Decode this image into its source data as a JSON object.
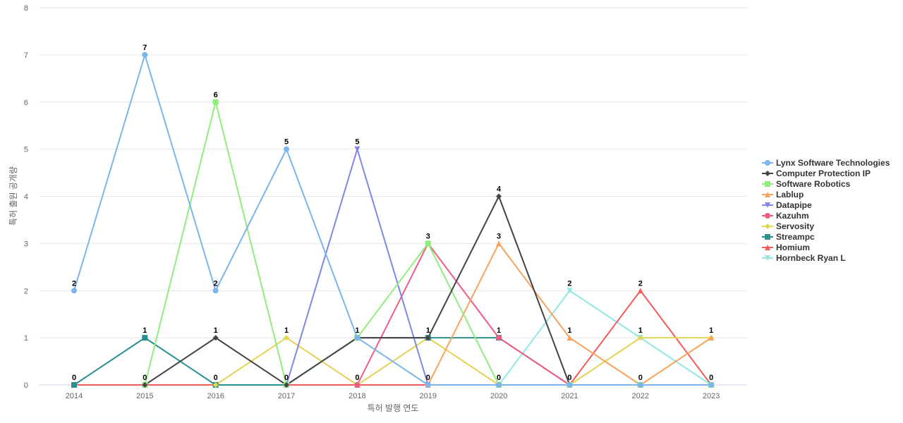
{
  "chart_data": {
    "type": "line",
    "title": "",
    "xlabel": "특허 발행 연도",
    "ylabel": "특허 출원 공개량",
    "ylim": [
      0,
      8
    ],
    "yticks": [
      0,
      1,
      2,
      3,
      4,
      5,
      6,
      7,
      8
    ],
    "grid": true,
    "legend_position": "right",
    "categories": [
      "2014",
      "2015",
      "2016",
      "2017",
      "2018",
      "2019",
      "2020",
      "2021",
      "2022",
      "2023"
    ],
    "series": [
      {
        "name": "Lynx Software Technologies",
        "color": "#7cb5ec",
        "marker": "circle",
        "values": [
          2,
          7,
          2,
          5,
          1,
          0,
          0,
          0,
          0,
          0
        ]
      },
      {
        "name": "Computer Protection IP",
        "color": "#434348",
        "marker": "diamond",
        "values": [
          null,
          0,
          1,
          0,
          1,
          1,
          4,
          0,
          0,
          0
        ]
      },
      {
        "name": "Software Robotics",
        "color": "#90ed7d",
        "marker": "square",
        "values": [
          null,
          0,
          6,
          0,
          1,
          3,
          0,
          0,
          0,
          0
        ]
      },
      {
        "name": "Lablup",
        "color": "#f7a35c",
        "marker": "triangle",
        "values": [
          null,
          null,
          null,
          null,
          null,
          0,
          3,
          1,
          0,
          1
        ]
      },
      {
        "name": "Datapipe",
        "color": "#8085e9",
        "marker": "triangle-down",
        "values": [
          null,
          null,
          null,
          0,
          5,
          0,
          0,
          0,
          0,
          0
        ]
      },
      {
        "name": "Kazuhm",
        "color": "#f15c80",
        "marker": "circle",
        "values": [
          null,
          null,
          null,
          null,
          0,
          3,
          1,
          0,
          0,
          0
        ]
      },
      {
        "name": "Servosity",
        "color": "#e4d354",
        "marker": "diamond",
        "values": [
          null,
          null,
          0,
          1,
          0,
          1,
          0,
          0,
          1,
          1
        ]
      },
      {
        "name": "Streampc",
        "color": "#2b908f",
        "marker": "square",
        "values": [
          0,
          1,
          0,
          0,
          1,
          1,
          1,
          0,
          0,
          0
        ]
      },
      {
        "name": "Homium",
        "color": "#f45b5b",
        "marker": "triangle",
        "values": [
          0,
          0,
          0,
          0,
          0,
          0,
          0,
          0,
          2,
          0
        ]
      },
      {
        "name": "Hornbeck Ryan L",
        "color": "#91e8e1",
        "marker": "triangle-down",
        "values": [
          0,
          0,
          0,
          0,
          0,
          0,
          0,
          2,
          1,
          0
        ]
      }
    ],
    "data_labels": [
      {
        "x": "2014",
        "value": 2
      },
      {
        "x": "2014",
        "value": 0
      },
      {
        "x": "2015",
        "value": 7
      },
      {
        "x": "2015",
        "value": 1
      },
      {
        "x": "2015",
        "value": 0
      },
      {
        "x": "2016",
        "value": 6
      },
      {
        "x": "2016",
        "value": 2
      },
      {
        "x": "2016",
        "value": 1
      },
      {
        "x": "2016",
        "value": 0
      },
      {
        "x": "2017",
        "value": 5
      },
      {
        "x": "2017",
        "value": 1
      },
      {
        "x": "2017",
        "value": 0
      },
      {
        "x": "2018",
        "value": 5
      },
      {
        "x": "2018",
        "value": 1
      },
      {
        "x": "2018",
        "value": 0
      },
      {
        "x": "2019",
        "value": 3
      },
      {
        "x": "2019",
        "value": 1
      },
      {
        "x": "2019",
        "value": 0
      },
      {
        "x": "2020",
        "value": 4
      },
      {
        "x": "2020",
        "value": 3
      },
      {
        "x": "2020",
        "value": 1
      },
      {
        "x": "2020",
        "value": 0
      },
      {
        "x": "2021",
        "value": 2
      },
      {
        "x": "2021",
        "value": 1
      },
      {
        "x": "2021",
        "value": 0
      },
      {
        "x": "2022",
        "value": 2
      },
      {
        "x": "2022",
        "value": 1
      },
      {
        "x": "2022",
        "value": 0
      },
      {
        "x": "2023",
        "value": 1
      },
      {
        "x": "2023",
        "value": 0
      }
    ]
  }
}
